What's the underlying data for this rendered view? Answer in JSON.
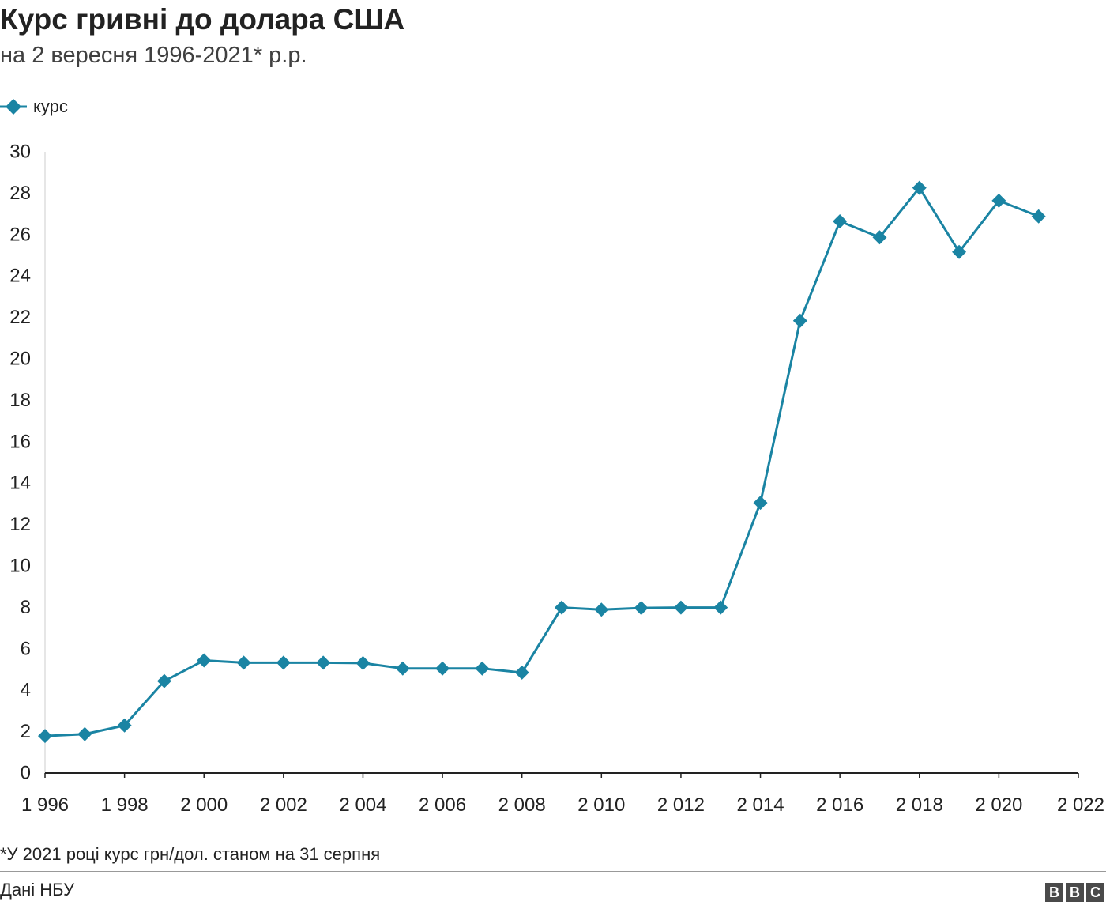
{
  "header": {
    "title": "Курс гривні до долара США",
    "subtitle": "на 2 вересня 1996-2021* р.р."
  },
  "footer": {
    "footnote": "*У 2021 році курс грн/дол. станом на 31 серпня",
    "source": "Дані НБУ",
    "logo_letters": [
      "B",
      "B",
      "C"
    ]
  },
  "colors": {
    "series": "#1a84a3",
    "axis": "#222222"
  },
  "chart_data": {
    "type": "line",
    "title": "Курс гривні до долара США",
    "subtitle": "на 2 вересня 1996-2021* р.р.",
    "legend": {
      "position": "top-left"
    },
    "grid": false,
    "xlim": [
      1996,
      2022
    ],
    "ylim": [
      0,
      30
    ],
    "x_ticks": [
      1996,
      1998,
      2000,
      2002,
      2004,
      2006,
      2008,
      2010,
      2012,
      2014,
      2016,
      2018,
      2020,
      2022
    ],
    "x_tick_labels": [
      "1 996",
      "1 998",
      "2 000",
      "2 002",
      "2 004",
      "2 006",
      "2 008",
      "2 010",
      "2 012",
      "2 014",
      "2 016",
      "2 018",
      "2 020",
      "2 022"
    ],
    "y_ticks": [
      0,
      2,
      4,
      6,
      8,
      10,
      12,
      14,
      16,
      18,
      20,
      22,
      24,
      26,
      28,
      30
    ],
    "y_tick_labels": [
      "0",
      "2",
      "4",
      "6",
      "8",
      "10",
      "12",
      "14",
      "16",
      "18",
      "20",
      "22",
      "24",
      "26",
      "28",
      "30"
    ],
    "series": [
      {
        "name": "курс",
        "marker": "diamond",
        "x": [
          1996,
          1997,
          1998,
          1999,
          2000,
          2001,
          2002,
          2003,
          2004,
          2005,
          2006,
          2007,
          2008,
          2009,
          2010,
          2011,
          2012,
          2013,
          2014,
          2015,
          2016,
          2017,
          2018,
          2019,
          2020,
          2021
        ],
        "y": [
          1.79,
          1.88,
          2.3,
          4.44,
          5.44,
          5.33,
          5.33,
          5.33,
          5.31,
          5.05,
          5.05,
          5.05,
          4.85,
          7.99,
          7.89,
          7.97,
          7.99,
          7.99,
          13.05,
          21.84,
          26.64,
          25.87,
          28.26,
          25.16,
          27.64,
          26.88
        ]
      }
    ]
  }
}
